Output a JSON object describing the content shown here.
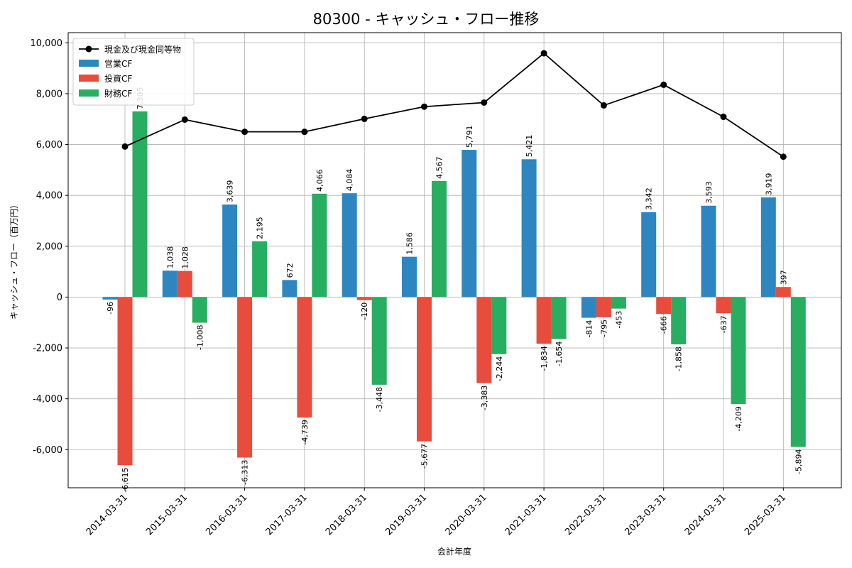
{
  "chart_data": {
    "type": "bar",
    "title": "80300 - キャッシュ・フロー推移",
    "xlabel": "会計年度",
    "ylabel": "キャッシュ・フロー（百万円）",
    "ylim": [
      -7500,
      10400
    ],
    "yticks": [
      -6000,
      -4000,
      -2000,
      0,
      2000,
      4000,
      6000,
      8000,
      10000
    ],
    "ytick_labels": [
      "-6,000",
      "-4,000",
      "-2,000",
      "0",
      "2,000",
      "4,000",
      "6,000",
      "8,000",
      "10,000"
    ],
    "grid": true,
    "legend_position": "top-left",
    "categories": [
      "2014-03-31",
      "2015-03-31",
      "2016-03-31",
      "2017-03-31",
      "2018-03-31",
      "2019-03-31",
      "2020-03-31",
      "2021-03-31",
      "2022-03-31",
      "2023-03-31",
      "2024-03-31",
      "2025-03-31"
    ],
    "series": [
      {
        "name": "営業CF",
        "color": "#2e86c1",
        "values": [
          -96,
          1038,
          3639,
          672,
          4084,
          1586,
          5791,
          5421,
          -814,
          3342,
          3593,
          3919
        ],
        "labels": [
          "-96",
          "1,038",
          "3,639",
          "672",
          "4,084",
          "1,586",
          "5,791",
          "5,421",
          "-814",
          "3,342",
          "3,593",
          "3,919"
        ]
      },
      {
        "name": "投資CF",
        "color": "#e74c3c",
        "values": [
          -6615,
          1028,
          -6313,
          -4739,
          -120,
          -5677,
          -3383,
          -1834,
          -795,
          -666,
          -637,
          397
        ],
        "labels": [
          "-6,615",
          "1,028",
          "-6,313",
          "-4,739",
          "-120",
          "-5,677",
          "-3,383",
          "-1,834",
          "-795",
          "-666",
          "-637",
          "397"
        ]
      },
      {
        "name": "財務CF",
        "color": "#27ae60",
        "values": [
          7305,
          -1008,
          2195,
          4066,
          -3448,
          4567,
          -2244,
          -1654,
          -453,
          -1858,
          -4209,
          -5894
        ],
        "labels": [
          "7,305",
          "-1,008",
          "2,195",
          "4,066",
          "-3,448",
          "4,567",
          "-2,244",
          "-1,654",
          "-453",
          "-1,858",
          "-4,209",
          "-5,894"
        ]
      }
    ],
    "line": {
      "name": "現金及び現金同等物",
      "color": "#000000",
      "values": [
        5920,
        6980,
        6500,
        6500,
        7010,
        7490,
        7650,
        9590,
        7540,
        8350,
        7090,
        5520
      ]
    }
  }
}
